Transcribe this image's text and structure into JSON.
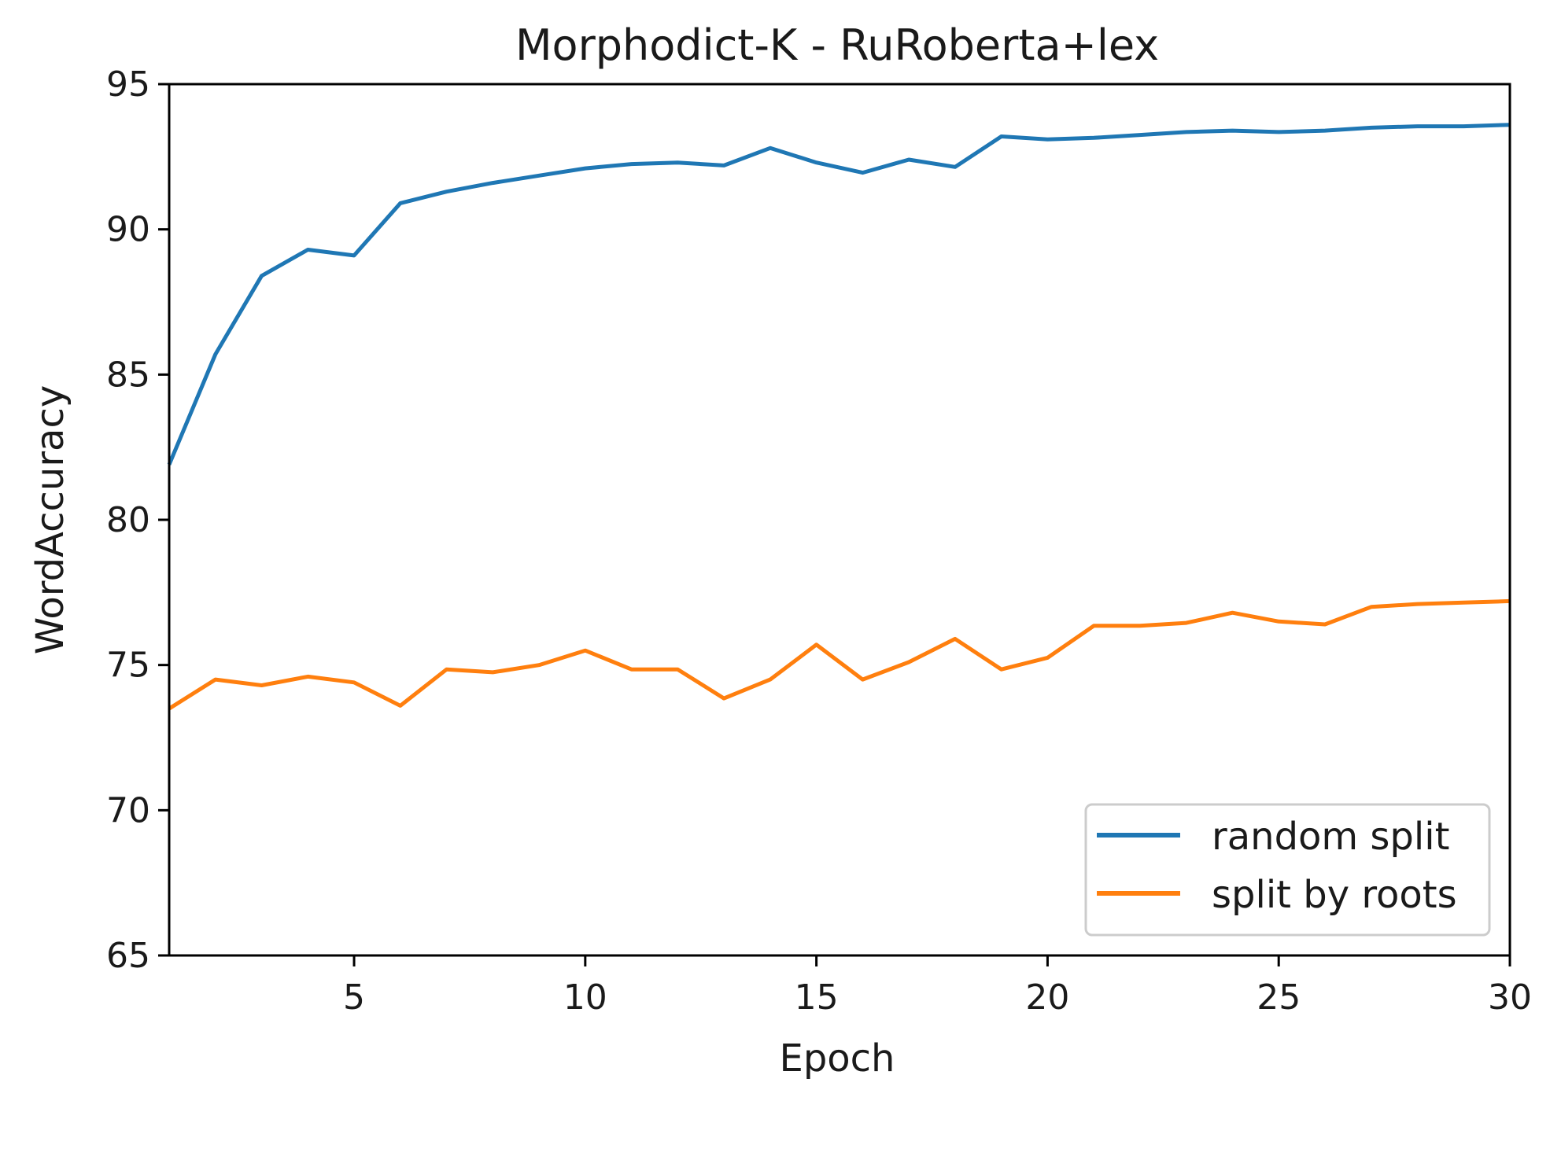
{
  "chart_data": {
    "type": "line",
    "title": "Morphodict-K - RuRoberta+lex",
    "xlabel": "Epoch",
    "ylabel": "WordAccuracy",
    "xlim": [
      1,
      30
    ],
    "ylim": [
      65,
      95
    ],
    "xticks": [
      5,
      10,
      15,
      20,
      25,
      30
    ],
    "yticks": [
      65,
      70,
      75,
      80,
      85,
      90,
      95
    ],
    "grid": false,
    "legend_position": "lower-right",
    "x": [
      1,
      2,
      3,
      4,
      5,
      6,
      7,
      8,
      9,
      10,
      11,
      12,
      13,
      14,
      15,
      16,
      17,
      18,
      19,
      20,
      21,
      22,
      23,
      24,
      25,
      26,
      27,
      28,
      29,
      30
    ],
    "series": [
      {
        "name": "random split",
        "color": "#1f77b4",
        "values": [
          81.9,
          85.7,
          88.4,
          89.3,
          89.1,
          90.9,
          91.3,
          91.6,
          91.85,
          92.1,
          92.25,
          92.3,
          92.2,
          92.8,
          92.3,
          91.95,
          92.4,
          92.15,
          93.2,
          93.1,
          93.15,
          93.25,
          93.35,
          93.4,
          93.35,
          93.4,
          93.5,
          93.55,
          93.55,
          93.6
        ]
      },
      {
        "name": "split by roots",
        "color": "#ff7f0e",
        "values": [
          73.5,
          74.5,
          74.3,
          74.6,
          74.4,
          73.6,
          74.85,
          74.75,
          75.0,
          75.5,
          74.85,
          74.85,
          73.85,
          74.5,
          75.7,
          74.5,
          75.1,
          75.9,
          74.85,
          75.25,
          76.35,
          76.35,
          76.45,
          76.8,
          76.5,
          76.4,
          77.0,
          77.1,
          77.15,
          77.2
        ]
      }
    ]
  }
}
